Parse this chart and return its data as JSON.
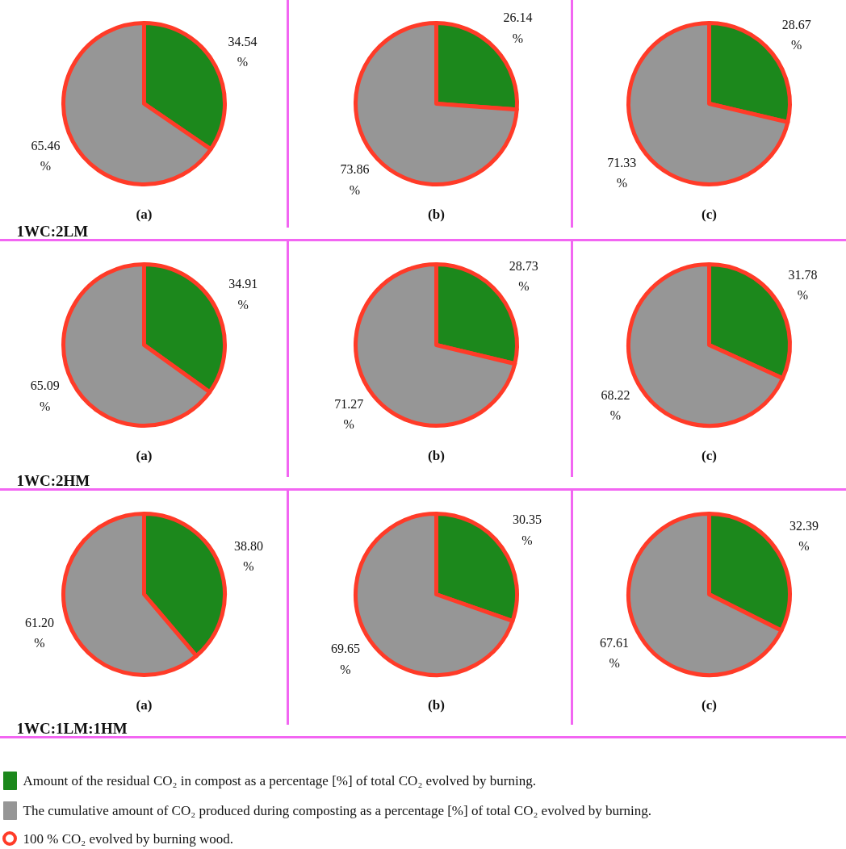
{
  "chart_data": [
    {
      "type": "pie",
      "title": "(a)",
      "subtitle": "1WC:2LM",
      "categories": [
        "Amount of the residual CO₂ in compost as a percentage [%] of total CO₂ evolved by burning.",
        "The cumulative amount of CO₂ produced during composting as a percentage [%] of total CO₂ evolved by burning."
      ],
      "values": [
        34.54,
        65.46
      ],
      "value_labels": [
        "34.54 %",
        "65.46 %"
      ],
      "colors": [
        "#1c881c",
        "#969696"
      ],
      "legend": "bottom",
      "annotations": [
        "100 % CO₂ evolved by burning wood."
      ]
    },
    {
      "type": "pie",
      "title": "(b)",
      "categories": [
        null,
        null
      ],
      "values": [
        26.14,
        73.86
      ],
      "value_labels": [
        "26.14 %",
        "73.86 %"
      ],
      "colors": [
        "#1c881c",
        "#969696"
      ]
    },
    {
      "type": "pie",
      "title": "(c)",
      "categories": [
        null,
        null
      ],
      "values": [
        28.67,
        71.33
      ],
      "value_labels": [
        "28.67 %",
        "71.33 %"
      ],
      "colors": [
        "#1c881c",
        "#969696"
      ]
    },
    {
      "type": "pie",
      "title": "(a)",
      "subtitle": "1WC:2HM",
      "categories": [
        null,
        null
      ],
      "values": [
        34.91,
        65.09
      ],
      "value_labels": [
        "34.91 %",
        "65.09 %"
      ],
      "colors": [
        "#1c881c",
        "#969696"
      ]
    },
    {
      "type": "pie",
      "title": "(b)",
      "categories": [
        null,
        null
      ],
      "values": [
        28.73,
        71.27
      ],
      "value_labels": [
        "28.73 %",
        "71.27 %"
      ],
      "colors": [
        "#1c881c",
        "#969696"
      ]
    },
    {
      "type": "pie",
      "title": "(c)",
      "categories": [
        null,
        null
      ],
      "values": [
        31.78,
        68.22
      ],
      "value_labels": [
        "31.78 %",
        "68.22 %"
      ],
      "colors": [
        "#1c881c",
        "#969696"
      ]
    },
    {
      "type": "pie",
      "title": "(a)",
      "subtitle": "1WC:1LM:1HM",
      "categories": [
        null,
        null
      ],
      "values": [
        38.8,
        61.2
      ],
      "value_labels": [
        "38.80 %",
        "61.20 %"
      ],
      "colors": [
        "#1c881c",
        "#969696"
      ]
    },
    {
      "type": "pie",
      "title": "(b)",
      "categories": [
        null,
        null
      ],
      "values": [
        30.35,
        69.65
      ],
      "value_labels": [
        "30.35 %",
        "69.65 %"
      ],
      "colors": [
        "#1c881c",
        "#969696"
      ]
    },
    {
      "type": "pie",
      "title": "(c)",
      "categories": [
        null,
        null
      ],
      "values": [
        32.39,
        67.61
      ],
      "value_labels": [
        "32.39 %",
        "67.61 %"
      ],
      "colors": [
        "#1c881c",
        "#969696"
      ]
    }
  ]
}
